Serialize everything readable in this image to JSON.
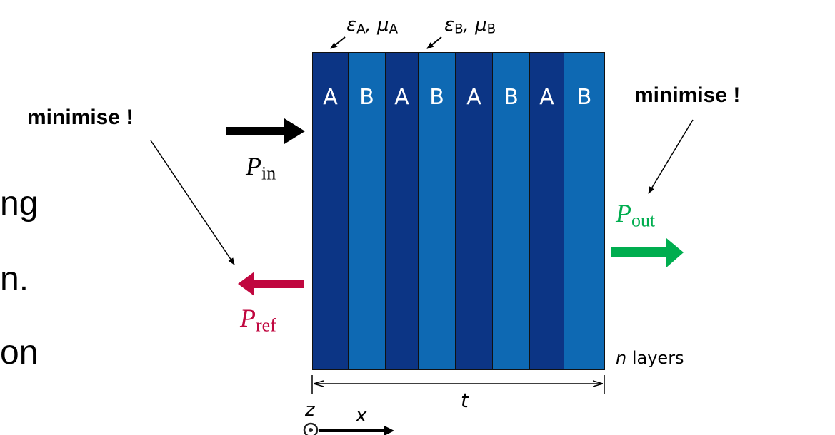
{
  "fragments": [
    "ng",
    "n.",
    "on"
  ],
  "left_label": "minimise !",
  "right_label": "minimise !",
  "material_a": {
    "eps": "ε",
    "mu": "μ",
    "sub": "A"
  },
  "material_b": {
    "eps": "ε",
    "mu": "μ",
    "sub": "B"
  },
  "layers": [
    "A",
    "B",
    "A",
    "B",
    "A",
    "B",
    "A",
    "B"
  ],
  "power_in": {
    "symbol": "P",
    "sub": "in"
  },
  "power_out": {
    "symbol": "P",
    "sub": "out"
  },
  "power_ref": {
    "symbol": "P",
    "sub": "ref"
  },
  "n_label": {
    "var": "n",
    "text": " layers"
  },
  "thickness_label": "t",
  "axis": {
    "z": "z",
    "x": "x"
  },
  "colors": {
    "layer_a": "#0c3585",
    "layer_b": "#0e69b3",
    "arrow_in": "#000000",
    "arrow_out": "#00ad4f",
    "arrow_ref": "#c0073f",
    "text_out": "#00ad4f",
    "text_ref": "#c0073f"
  }
}
